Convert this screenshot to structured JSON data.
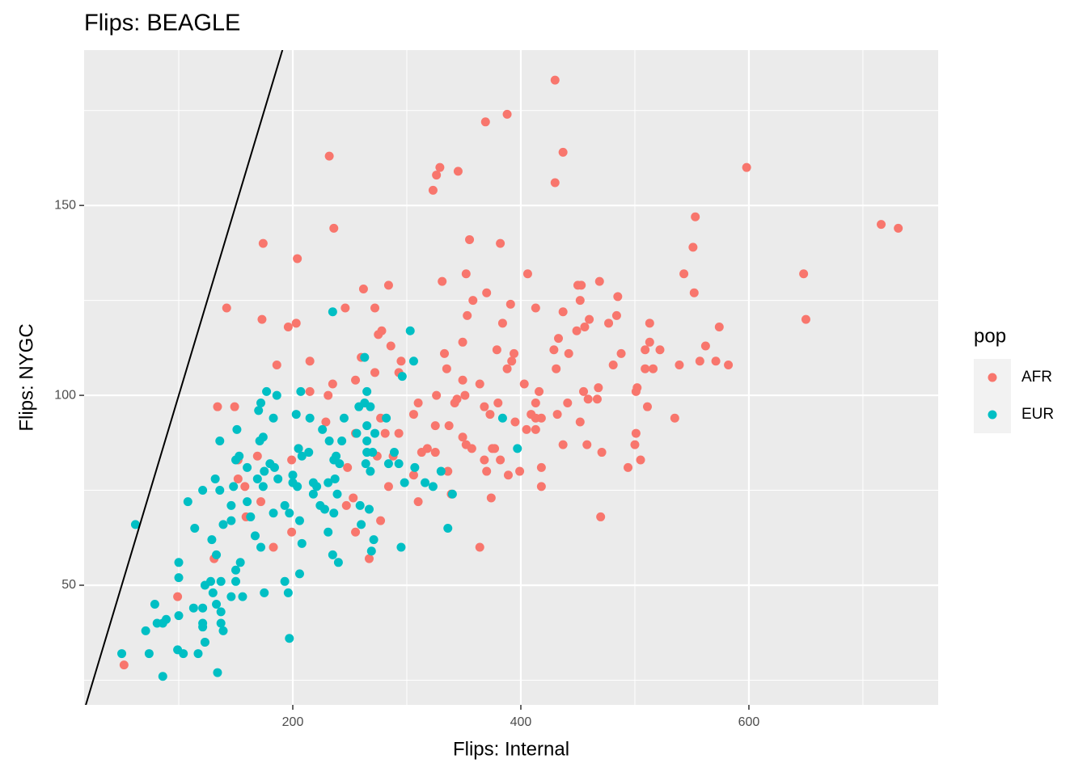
{
  "chart_data": {
    "type": "scatter",
    "title": "Flips: BEAGLE",
    "x_label": "Flips: Internal",
    "y_label": "Flips: NYGC",
    "xlim": [
      17,
      766
    ],
    "ylim": [
      18.5,
      190.9
    ],
    "xticks": [
      200,
      400,
      600
    ],
    "yticks": [
      50,
      100,
      150
    ],
    "x_minor_ticks": [
      100,
      300,
      500,
      700
    ],
    "y_minor_ticks": [
      25,
      75,
      125,
      175
    ],
    "grid": true,
    "legend_title": "pop",
    "legend_position": "right",
    "reference_line": {
      "slope": 1,
      "intercept": 0,
      "color": "#000000"
    },
    "series": [
      {
        "name": "AFR",
        "color": "#F8766D",
        "x": [
          430,
          369,
          388,
          437,
          430,
          232,
          329,
          326,
          323,
          345,
          598,
          716,
          731,
          553,
          551,
          236,
          174,
          355,
          382,
          204,
          648,
          543,
          406,
          331,
          352,
          469,
          450,
          453,
          284,
          262,
          552,
          370,
          485,
          358,
          452,
          142,
          246,
          272,
          413,
          391,
          437,
          353,
          484,
          173,
          650,
          203,
          196,
          384,
          460,
          477,
          456,
          574,
          513,
          449,
          278,
          275,
          286,
          562,
          513,
          433,
          349,
          522,
          429,
          509,
          379,
          442,
          333,
          394,
          488,
          260,
          215,
          295,
          392,
          557,
          571,
          582,
          539,
          481,
          186,
          388,
          335,
          431,
          509,
          516,
          272,
          293,
          255,
          349,
          403,
          235,
          364,
          468,
          455,
          502,
          501,
          416,
          215,
          231,
          326,
          351,
          344,
          459,
          467,
          342,
          441,
          413,
          380,
          134,
          149,
          368,
          511,
          310,
          373,
          432,
          306,
          409,
          413,
          418,
          535,
          277,
          229,
          452,
          395,
          325,
          337,
          413,
          405,
          501,
          293,
          281,
          255,
          349,
          352,
          357,
          377,
          437,
          500,
          458,
          375,
          205,
          313,
          318,
          325,
          274,
          169,
          288,
          471,
          152,
          368,
          382,
          505,
          199,
          418,
          248,
          494,
          370,
          399,
          336,
          389,
          306,
          152,
          284,
          418,
          158,
          172,
          253,
          310,
          247,
          339,
          374,
          159,
          277,
          470,
          199,
          255,
          183,
          364,
          267,
          131,
          99,
          123,
          52
        ],
        "y": [
          183,
          172,
          174,
          164,
          156,
          163,
          160,
          158,
          154,
          159,
          160,
          145,
          144,
          147,
          139,
          144,
          140,
          141,
          140,
          136,
          132,
          132,
          132,
          130,
          132,
          130,
          129,
          129,
          129,
          128,
          127,
          127,
          126,
          125,
          125,
          123,
          123,
          123,
          123,
          124,
          122,
          121,
          121,
          120,
          120,
          119,
          118,
          119,
          120,
          119,
          118,
          118,
          119,
          117,
          117,
          116,
          113,
          113,
          114,
          115,
          114,
          112,
          112,
          112,
          112,
          111,
          111,
          111,
          111,
          110,
          109,
          109,
          109,
          109,
          109,
          108,
          108,
          108,
          108,
          107,
          107,
          107,
          107,
          107,
          106,
          106,
          104,
          104,
          103,
          103,
          103,
          102,
          101,
          102,
          101,
          101,
          101,
          100,
          100,
          100,
          99,
          99,
          99,
          98,
          98,
          98,
          98,
          97,
          97,
          97,
          97,
          98,
          95,
          95,
          95,
          95,
          94,
          94,
          94,
          94,
          93,
          93,
          93,
          92,
          92,
          91,
          91,
          90,
          90,
          90,
          90,
          89,
          87,
          86,
          86,
          87,
          87,
          87,
          86,
          86,
          85,
          86,
          85,
          84,
          84,
          84,
          85,
          83,
          83,
          83,
          83,
          83,
          81,
          81,
          81,
          80,
          80,
          80,
          79,
          79,
          78,
          76,
          76,
          76,
          72,
          73,
          72,
          71,
          74,
          73,
          68,
          67,
          68,
          64,
          64,
          60,
          60,
          57,
          57,
          47,
          35,
          29
        ]
      },
      {
        "name": "EUR",
        "color": "#00BFC4",
        "x": [
          235,
          303,
          263,
          306,
          296,
          177,
          186,
          207,
          172,
          265,
          263,
          268,
          258,
          203,
          170,
          183,
          215,
          384,
          245,
          282,
          151,
          226,
          265,
          272,
          174,
          256,
          136,
          171,
          232,
          243,
          265,
          205,
          214,
          265,
          270,
          289,
          397,
          153,
          208,
          238,
          236,
          150,
          241,
          160,
          180,
          184,
          264,
          284,
          293,
          307,
          175,
          268,
          330,
          200,
          237,
          132,
          169,
          187,
          200,
          218,
          231,
          298,
          316,
          121,
          148,
          174,
          204,
          221,
          136,
          239,
          323,
          218,
          108,
          160,
          146,
          193,
          224,
          228,
          259,
          267,
          340,
          183,
          197,
          236,
          163,
          146,
          206,
          62,
          260,
          139,
          114,
          231,
          167,
          336,
          271,
          129,
          208,
          295,
          172,
          269,
          235,
          133,
          154,
          100,
          240,
          206,
          150,
          100,
          128,
          137,
          150,
          193,
          123,
          130,
          146,
          156,
          175,
          196,
          79,
          113,
          133,
          121,
          137,
          100,
          71,
          89,
          81,
          121,
          137,
          139,
          86,
          121,
          197,
          123,
          99,
          104,
          117,
          50,
          74,
          134,
          86
        ],
        "y": [
          122,
          117,
          110,
          109,
          105,
          101,
          100,
          101,
          98,
          101,
          98,
          97,
          97,
          95,
          96,
          94,
          94,
          94,
          94,
          94,
          91,
          91,
          92,
          90,
          89,
          90,
          88,
          88,
          88,
          88,
          88,
          86,
          85,
          85,
          85,
          85,
          86,
          84,
          84,
          84,
          83,
          83,
          82,
          81,
          82,
          81,
          82,
          82,
          82,
          81,
          80,
          80,
          80,
          79,
          78,
          78,
          78,
          78,
          77,
          77,
          77,
          77,
          77,
          75,
          76,
          76,
          76,
          76,
          75,
          74,
          76,
          74,
          72,
          72,
          71,
          71,
          71,
          70,
          71,
          70,
          74,
          69,
          69,
          69,
          68,
          67,
          67,
          66,
          66,
          66,
          65,
          64,
          63,
          65,
          62,
          62,
          61,
          60,
          60,
          59,
          58,
          58,
          56,
          56,
          56,
          53,
          54,
          52,
          51,
          51,
          51,
          51,
          50,
          48,
          47,
          47,
          48,
          48,
          45,
          44,
          45,
          44,
          43,
          42,
          38,
          41,
          40,
          40,
          40,
          38,
          40,
          39,
          36,
          35,
          33,
          32,
          32,
          32,
          32,
          27,
          26
        ]
      }
    ]
  }
}
